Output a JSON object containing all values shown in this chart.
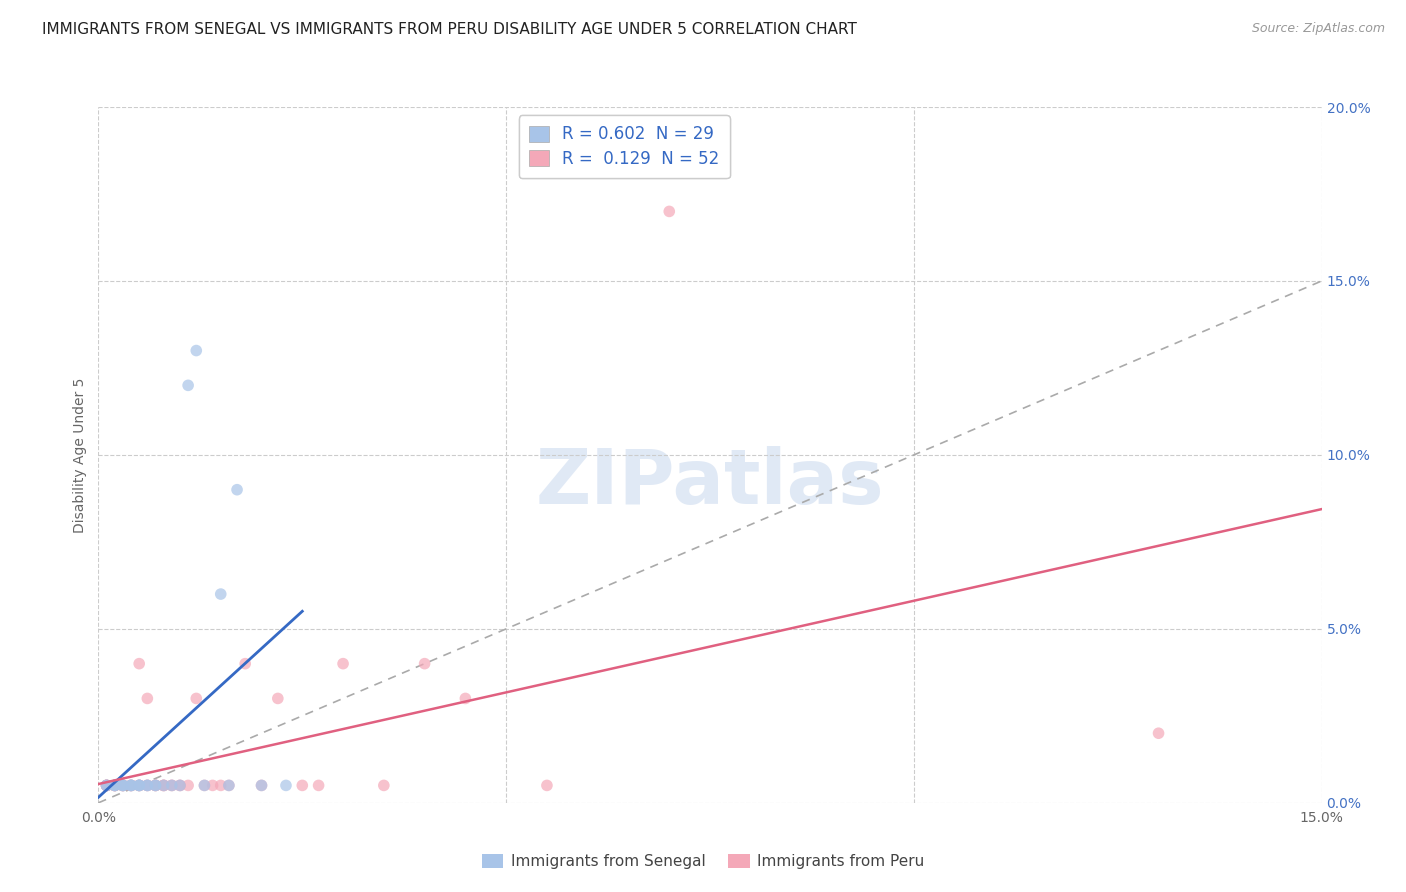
{
  "title": "IMMIGRANTS FROM SENEGAL VS IMMIGRANTS FROM PERU DISABILITY AGE UNDER 5 CORRELATION CHART",
  "source": "Source: ZipAtlas.com",
  "ylabel": "Disability Age Under 5",
  "xlim": [
    0.0,
    0.15
  ],
  "ylim": [
    0.0,
    0.2
  ],
  "background_color": "#ffffff",
  "grid_color": "#cccccc",
  "senegal_color": "#a8c4e8",
  "peru_color": "#f4a8b8",
  "senegal_line_color": "#3569c4",
  "peru_line_color": "#e06080",
  "diag_color": "#aaaaaa",
  "right_tick_color": "#4472c4",
  "senegal_R": 0.602,
  "senegal_N": 29,
  "peru_R": 0.129,
  "peru_N": 52,
  "senegal_x": [
    0.001,
    0.001,
    0.002,
    0.002,
    0.002,
    0.003,
    0.003,
    0.003,
    0.004,
    0.004,
    0.004,
    0.005,
    0.005,
    0.005,
    0.006,
    0.006,
    0.007,
    0.007,
    0.008,
    0.009,
    0.01,
    0.011,
    0.012,
    0.013,
    0.015,
    0.016,
    0.017,
    0.02,
    0.023
  ],
  "senegal_y": [
    0.005,
    0.005,
    0.005,
    0.005,
    0.005,
    0.005,
    0.005,
    0.005,
    0.005,
    0.005,
    0.005,
    0.005,
    0.005,
    0.005,
    0.005,
    0.005,
    0.005,
    0.005,
    0.005,
    0.005,
    0.005,
    0.12,
    0.13,
    0.005,
    0.06,
    0.005,
    0.09,
    0.005,
    0.005
  ],
  "peru_x": [
    0.001,
    0.001,
    0.001,
    0.001,
    0.001,
    0.002,
    0.002,
    0.002,
    0.002,
    0.002,
    0.003,
    0.003,
    0.003,
    0.003,
    0.004,
    0.004,
    0.004,
    0.005,
    0.005,
    0.005,
    0.005,
    0.006,
    0.006,
    0.006,
    0.007,
    0.007,
    0.007,
    0.008,
    0.008,
    0.008,
    0.009,
    0.009,
    0.01,
    0.01,
    0.011,
    0.012,
    0.013,
    0.014,
    0.015,
    0.016,
    0.018,
    0.02,
    0.022,
    0.025,
    0.027,
    0.03,
    0.035,
    0.04,
    0.045,
    0.055,
    0.07,
    0.13
  ],
  "peru_y": [
    0.005,
    0.005,
    0.005,
    0.005,
    0.005,
    0.005,
    0.005,
    0.005,
    0.005,
    0.005,
    0.005,
    0.005,
    0.005,
    0.005,
    0.005,
    0.005,
    0.005,
    0.005,
    0.005,
    0.005,
    0.04,
    0.005,
    0.005,
    0.03,
    0.005,
    0.005,
    0.005,
    0.005,
    0.005,
    0.005,
    0.005,
    0.005,
    0.005,
    0.005,
    0.005,
    0.03,
    0.005,
    0.005,
    0.005,
    0.005,
    0.04,
    0.005,
    0.03,
    0.005,
    0.005,
    0.04,
    0.005,
    0.04,
    0.03,
    0.005,
    0.17,
    0.02
  ],
  "title_fontsize": 11,
  "axis_label_fontsize": 10,
  "tick_fontsize": 10,
  "marker_size": 70,
  "senegal_line_x0": 0.0,
  "senegal_line_x1": 0.025,
  "peru_line_x0": 0.0,
  "peru_line_x1": 0.15
}
